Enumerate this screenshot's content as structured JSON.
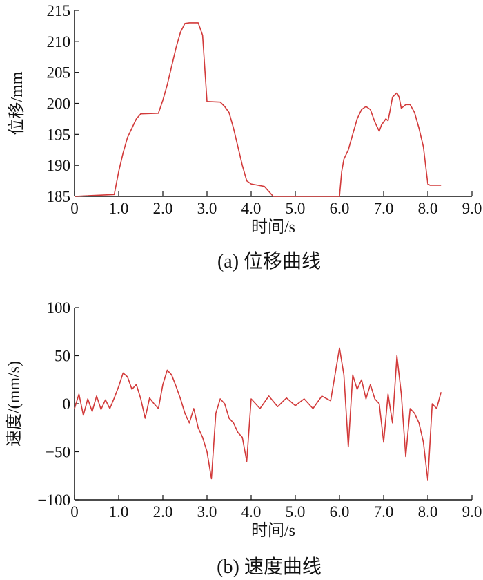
{
  "chart_data": [
    {
      "type": "line",
      "caption": "(a) 位移曲线",
      "xlabel": "时间/s",
      "ylabel": "位移/mm",
      "xlim": [
        0,
        9
      ],
      "ylim": [
        185,
        215
      ],
      "xticks": [
        0,
        1.0,
        2.0,
        3.0,
        4.0,
        5.0,
        6.0,
        7.0,
        8.0,
        9.0
      ],
      "xtick_labels": [
        "0",
        "1.0",
        "2.0",
        "3.0",
        "4.0",
        "5.0",
        "6.0",
        "7.0",
        "8.0",
        "9.0"
      ],
      "yticks": [
        185,
        190,
        195,
        200,
        205,
        210,
        215
      ],
      "ytick_labels": [
        "185",
        "190",
        "195",
        "200",
        "205",
        "210",
        "215"
      ],
      "grid": false,
      "series_color": "#d23a3a",
      "series": [
        {
          "x": [
            0,
            0.9,
            1.0,
            1.1,
            1.2,
            1.3,
            1.4,
            1.5,
            1.9,
            2.0,
            2.1,
            2.2,
            2.3,
            2.4,
            2.5,
            2.6,
            2.8,
            2.9,
            3.0,
            3.3,
            3.4,
            3.5,
            3.6,
            3.7,
            3.8,
            3.9,
            4.0,
            4.3,
            4.5,
            6.0,
            6.05,
            6.1,
            6.2,
            6.3,
            6.4,
            6.5,
            6.6,
            6.7,
            6.8,
            6.9,
            6.95,
            7.0,
            7.05,
            7.1,
            7.15,
            7.2,
            7.3,
            7.35,
            7.4,
            7.5,
            7.6,
            7.7,
            7.8,
            7.9,
            8.0,
            8.05,
            8.3
          ],
          "y": [
            185,
            185.3,
            189,
            192,
            194.5,
            196,
            197.5,
            198.3,
            198.4,
            200.5,
            203,
            206,
            209,
            211.5,
            212.9,
            213,
            213,
            211,
            200.3,
            200.2,
            199.5,
            198.5,
            196,
            193,
            190,
            187.5,
            187,
            186.6,
            185,
            185,
            189,
            191,
            192.5,
            195,
            197.5,
            199,
            199.5,
            199,
            197,
            195.5,
            196.5,
            197,
            197.5,
            197.2,
            199,
            201,
            201.7,
            201,
            199.2,
            199.8,
            199.8,
            198.5,
            196,
            193,
            187,
            186.8,
            186.8
          ]
        }
      ]
    },
    {
      "type": "line",
      "caption": "(b) 速度曲线",
      "xlabel": "时间/s",
      "ylabel": "速度/(mm/s)",
      "xlim": [
        0,
        9
      ],
      "ylim": [
        -100,
        100
      ],
      "xticks": [
        0,
        1.0,
        2.0,
        3.0,
        4.0,
        5.0,
        6.0,
        7.0,
        8.0,
        9.0
      ],
      "xtick_labels": [
        "0",
        "1.0",
        "2.0",
        "3.0",
        "4.0",
        "5.0",
        "6.0",
        "7.0",
        "8.0",
        "9.0"
      ],
      "yticks": [
        -100,
        -50,
        0,
        50,
        100
      ],
      "ytick_labels": [
        "−100",
        "−50",
        "0",
        "50",
        "100"
      ],
      "grid": false,
      "series_color": "#d23a3a",
      "series": [
        {
          "x": [
            0,
            0.1,
            0.2,
            0.3,
            0.4,
            0.5,
            0.6,
            0.7,
            0.8,
            0.9,
            1.0,
            1.1,
            1.2,
            1.3,
            1.4,
            1.5,
            1.6,
            1.7,
            1.8,
            1.9,
            2.0,
            2.1,
            2.2,
            2.3,
            2.4,
            2.5,
            2.6,
            2.7,
            2.8,
            2.9,
            3.0,
            3.1,
            3.2,
            3.3,
            3.4,
            3.5,
            3.6,
            3.7,
            3.8,
            3.9,
            4.0,
            4.2,
            4.4,
            4.6,
            4.8,
            5.0,
            5.2,
            5.4,
            5.6,
            5.8,
            6.0,
            6.1,
            6.2,
            6.3,
            6.4,
            6.5,
            6.6,
            6.7,
            6.8,
            6.9,
            7.0,
            7.1,
            7.2,
            7.3,
            7.4,
            7.5,
            7.6,
            7.7,
            7.8,
            7.9,
            8.0,
            8.1,
            8.2,
            8.3
          ],
          "y": [
            -5,
            10,
            -12,
            5,
            -8,
            8,
            -6,
            4,
            -5,
            6,
            18,
            32,
            28,
            15,
            20,
            5,
            -15,
            6,
            0,
            -5,
            20,
            35,
            30,
            18,
            5,
            -10,
            -20,
            -5,
            -25,
            -35,
            -50,
            -78,
            -10,
            5,
            0,
            -15,
            -20,
            -30,
            -35,
            -60,
            5,
            -5,
            8,
            -3,
            6,
            -2,
            5,
            -5,
            8,
            3,
            58,
            30,
            -45,
            30,
            15,
            25,
            5,
            20,
            5,
            0,
            -40,
            10,
            -20,
            50,
            10,
            -55,
            -5,
            -10,
            -20,
            -40,
            -80,
            0,
            -5,
            12
          ]
        }
      ]
    }
  ]
}
